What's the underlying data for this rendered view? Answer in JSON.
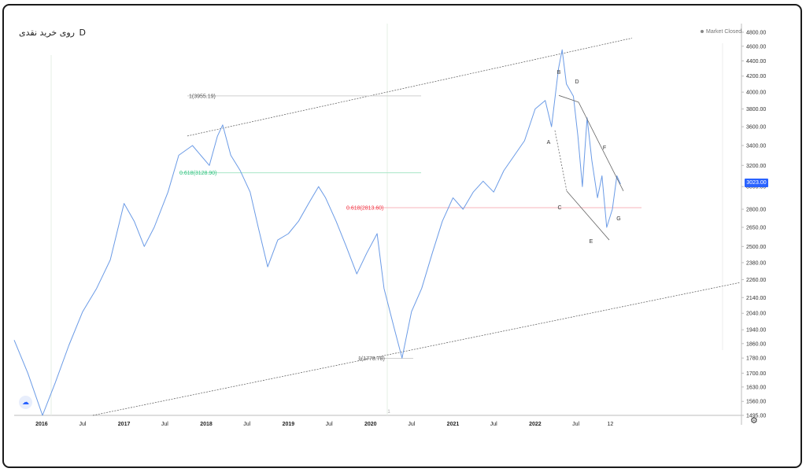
{
  "header": {
    "title": "روی خرید نقدی",
    "interval": "D",
    "status": "Market Closed",
    "last_price": "3023.00"
  },
  "colors": {
    "price_line": "#6b9be6",
    "fib_green": "#2ec27e",
    "fib_red": "#f23645",
    "channel": "#555555",
    "last_price_bg": "#2962ff"
  },
  "chart_data": {
    "type": "line",
    "title": "",
    "xlabel": "",
    "ylabel": "",
    "y_scale": "log",
    "ylim": [
      1495,
      4800
    ],
    "x_tick_labels": [
      "2016",
      "Jul",
      "2017",
      "Jul",
      "2018",
      "Jul",
      "2019",
      "Jul",
      "2020",
      "Jul",
      "2021",
      "Jul",
      "2022",
      "Jul",
      "12"
    ],
    "y_tick_labels": [
      "4800.00",
      "4600.00",
      "4400.00",
      "4200.00",
      "4000.00",
      "3800.00",
      "3600.00",
      "3400.00",
      "3200.00",
      "3000.00",
      "2800.00",
      "2650.00",
      "2500.00",
      "2380.00",
      "2260.00",
      "2140.00",
      "2040.00",
      "1940.00",
      "1860.00",
      "1780.00",
      "1700.00",
      "1630.00",
      "1560.00",
      "1495.00"
    ],
    "series": [
      {
        "x": [
          "2015-09-01",
          "2015-11-01",
          "2016-01-05",
          "2016-03-01",
          "2016-05-01",
          "2016-07-01",
          "2016-09-01",
          "2016-11-01",
          "2017-01-01",
          "2017-02-15",
          "2017-04-01",
          "2017-05-15",
          "2017-07-15",
          "2017-09-01",
          "2017-11-01",
          "2018-01-15",
          "2018-02-20",
          "2018-03-15",
          "2018-04-20",
          "2018-06-01",
          "2018-07-15",
          "2018-08-20",
          "2018-10-01",
          "2018-11-15",
          "2019-01-01",
          "2019-02-15",
          "2019-04-01",
          "2019-05-15",
          "2019-06-15",
          "2019-08-01",
          "2019-09-15",
          "2019-11-01",
          "2019-12-15",
          "2020-01-30",
          "2020-03-01",
          "2020-04-15",
          "2020-05-20",
          "2020-07-01",
          "2020-08-15",
          "2020-10-01",
          "2020-11-15",
          "2021-01-01",
          "2021-02-15",
          "2021-04-01",
          "2021-05-15",
          "2021-07-01",
          "2021-08-15",
          "2021-10-01",
          "2021-11-15",
          "2022-01-01",
          "2022-02-15",
          "2022-03-15",
          "2022-04-15",
          "2022-05-01",
          "2022-05-20",
          "2022-06-20",
          "2022-07-10",
          "2022-07-30",
          "2022-08-20",
          "2022-09-10",
          "2022-10-05",
          "2022-10-25",
          "2022-11-15",
          "2022-12-10",
          "2022-12-30",
          "2023-01-15"
        ],
        "y": [
          1880,
          1700,
          1495,
          1650,
          1850,
          2050,
          2200,
          2400,
          2850,
          2700,
          2500,
          2650,
          2950,
          3300,
          3400,
          3200,
          3500,
          3620,
          3300,
          3150,
          2950,
          2650,
          2350,
          2550,
          2600,
          2700,
          2850,
          3000,
          2900,
          2700,
          2500,
          2300,
          2450,
          2600,
          2200,
          1950,
          1780,
          2050,
          2200,
          2450,
          2700,
          2900,
          2800,
          2950,
          3050,
          2950,
          3150,
          3300,
          3450,
          3800,
          3900,
          3600,
          4300,
          4550,
          4100,
          3950,
          3500,
          3000,
          3700,
          3250,
          2900,
          3100,
          2650,
          2800,
          3100,
          3023
        ]
      }
    ],
    "annotations": [
      {
        "text": "1(3955.19)",
        "value": 3955.19
      },
      {
        "text": "0.618(3128.90)",
        "value": 3128.9
      },
      {
        "text": "0.618(2813.60)",
        "value": 2813.6
      },
      {
        "text": "1(1778.78)",
        "value": 1778.78
      },
      {
        "text": "A"
      },
      {
        "text": "B"
      },
      {
        "text": "C"
      },
      {
        "text": "D"
      },
      {
        "text": "E"
      },
      {
        "text": "F"
      },
      {
        "text": "G"
      },
      {
        "text": "1"
      }
    ]
  }
}
